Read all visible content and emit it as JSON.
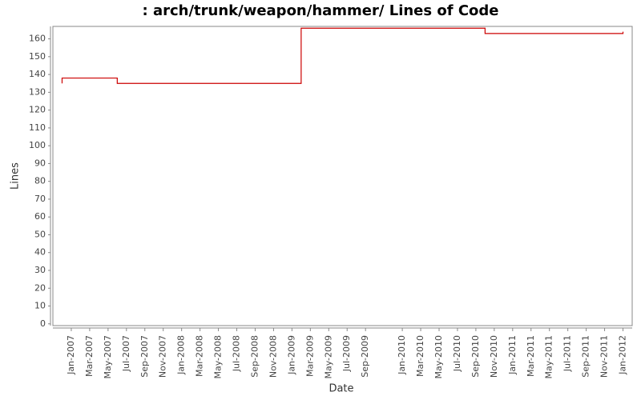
{
  "chart_data": {
    "type": "step-line",
    "title": ": arch/trunk/weapon/hammer/ Lines of Code",
    "x_label": "Date",
    "y_label": "Lines",
    "x": [
      "2006-12",
      "2006-12",
      "2007-06",
      "2009-02",
      "2010-10",
      "2012-01"
    ],
    "series": [
      {
        "name": "Lines",
        "color": "#cc0000",
        "values": [
          135,
          138,
          135,
          166,
          163,
          164
        ]
      }
    ],
    "xlim": [
      "2006-11",
      "2012-02"
    ],
    "xticks": [
      {
        "value": "2007-01",
        "label": "Jan-2007"
      },
      {
        "value": "2007-03",
        "label": "Mar-2007"
      },
      {
        "value": "2007-05",
        "label": "May-2007"
      },
      {
        "value": "2007-07",
        "label": "Jul-2007"
      },
      {
        "value": "2007-09",
        "label": "Sep-2007"
      },
      {
        "value": "2007-11",
        "label": "Nov-2007"
      },
      {
        "value": "2008-01",
        "label": "Jan-2008"
      },
      {
        "value": "2008-03",
        "label": "Mar-2008"
      },
      {
        "value": "2008-05",
        "label": "May-2008"
      },
      {
        "value": "2008-07",
        "label": "Jul-2008"
      },
      {
        "value": "2008-09",
        "label": "Sep-2008"
      },
      {
        "value": "2008-11",
        "label": "Nov-2008"
      },
      {
        "value": "2009-01",
        "label": "Jan-2009"
      },
      {
        "value": "2009-03",
        "label": "Mar-2009"
      },
      {
        "value": "2009-05",
        "label": "May-2009"
      },
      {
        "value": "2009-07",
        "label": "Jul-2009"
      },
      {
        "value": "2009-09",
        "label": "Sep-2009"
      },
      {
        "value": "2010-01",
        "label": "Jan-2010"
      },
      {
        "value": "2010-03",
        "label": "Mar-2010"
      },
      {
        "value": "2010-05",
        "label": "May-2010"
      },
      {
        "value": "2010-07",
        "label": "Jul-2010"
      },
      {
        "value": "2010-09",
        "label": "Sep-2010"
      },
      {
        "value": "2010-11",
        "label": "Nov-2010"
      },
      {
        "value": "2011-01",
        "label": "Jan-2011"
      },
      {
        "value": "2011-03",
        "label": "Mar-2011"
      },
      {
        "value": "2011-05",
        "label": "May-2011"
      },
      {
        "value": "2011-07",
        "label": "Jul-2011"
      },
      {
        "value": "2011-09",
        "label": "Sep-2011"
      },
      {
        "value": "2011-11",
        "label": "Nov-2011"
      },
      {
        "value": "2012-01",
        "label": "Jan-2012"
      }
    ],
    "ylim": [
      -1,
      167
    ],
    "yticks": [
      0,
      10,
      20,
      30,
      40,
      50,
      60,
      70,
      80,
      90,
      100,
      110,
      120,
      130,
      140,
      150,
      160
    ],
    "grid": false
  }
}
